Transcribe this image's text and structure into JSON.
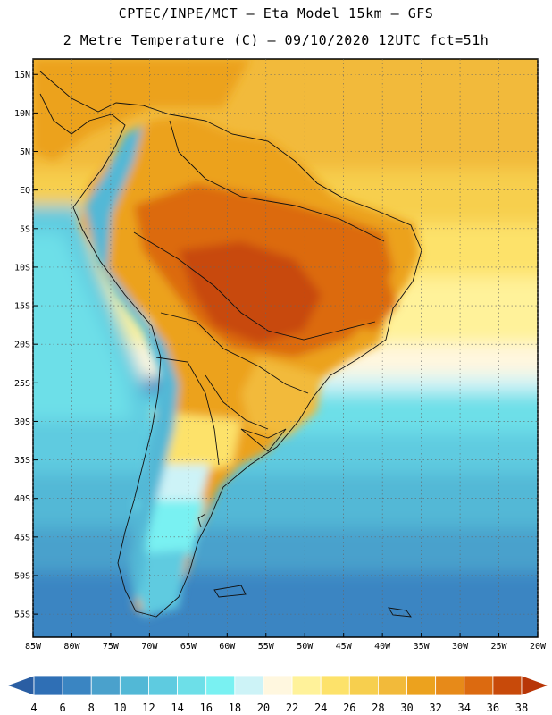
{
  "header": {
    "line1": "CPTEC/INPE/MCT –  Eta Model 15km – GFS",
    "line2": "2 Metre Temperature (C) – 09/10/2020 12UTC fct=51h"
  },
  "map": {
    "lon_range": [
      -85,
      -20
    ],
    "lat_range": [
      -58,
      17
    ],
    "lat_ticks": [
      "15N",
      "10N",
      "5N",
      "EQ",
      "5S",
      "10S",
      "15S",
      "20S",
      "25S",
      "30S",
      "35S",
      "40S",
      "45S",
      "50S",
      "55S"
    ],
    "lon_ticks": [
      "85W",
      "80W",
      "75W",
      "70W",
      "65W",
      "60W",
      "55W",
      "50W",
      "45W",
      "40W",
      "35W",
      "30W",
      "25W",
      "20W"
    ],
    "grid": true
  },
  "colorbar": {
    "labels": [
      "4",
      "6",
      "8",
      "10",
      "12",
      "14",
      "16",
      "18",
      "20",
      "22",
      "24",
      "26",
      "28",
      "30",
      "32",
      "34",
      "36",
      "38"
    ],
    "colors": [
      "#2f6fb5",
      "#3a85c2",
      "#4aa1cc",
      "#52b8d6",
      "#5ecbe0",
      "#6ddfe8",
      "#79f1f2",
      "#cdf3f7",
      "#fff7df",
      "#fff29a",
      "#fde26a",
      "#f7cf4e",
      "#f2ba3a",
      "#eca21e",
      "#e78a19",
      "#dc6a10",
      "#c84a0a"
    ],
    "low_color": "#2a5ea3",
    "high_color": "#b83607"
  },
  "chart_data": {
    "type": "heatmap",
    "title": "2 Metre Temperature (C) – 09/10/2020 12UTC fct=51h",
    "xlabel": "",
    "ylabel": "",
    "x_ticks": [
      "85W",
      "80W",
      "75W",
      "70W",
      "65W",
      "60W",
      "55W",
      "50W",
      "45W",
      "40W",
      "35W",
      "30W",
      "25W",
      "20W"
    ],
    "y_ticks": [
      "15N",
      "10N",
      "5N",
      "EQ",
      "5S",
      "10S",
      "15S",
      "20S",
      "25S",
      "30S",
      "35S",
      "40S",
      "45S",
      "50S",
      "55S"
    ],
    "color_levels": [
      4,
      6,
      8,
      10,
      12,
      14,
      16,
      18,
      20,
      22,
      24,
      26,
      28,
      30,
      32,
      34,
      36,
      38
    ],
    "grid": true
  }
}
